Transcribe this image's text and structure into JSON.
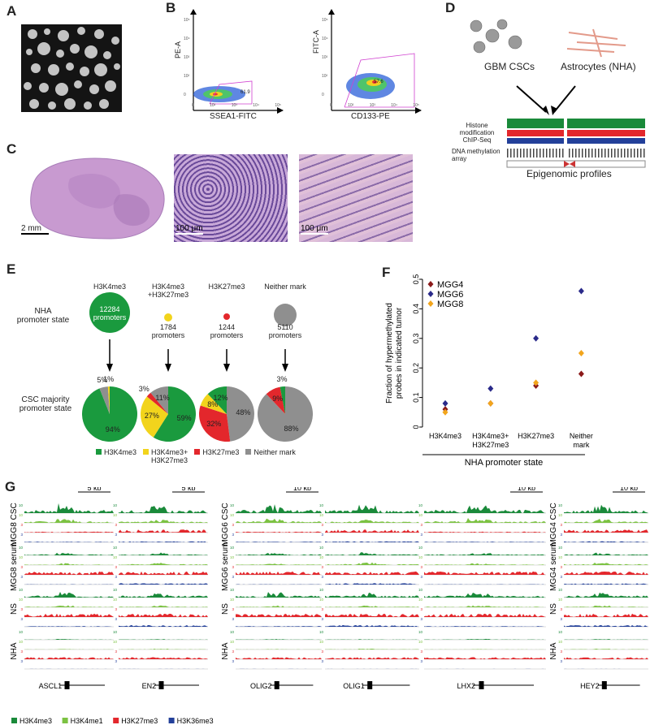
{
  "panel_letters": {
    "a": "A",
    "b": "B",
    "c": "C",
    "d": "D",
    "e": "E",
    "f": "F",
    "g": "G"
  },
  "panel_b": {
    "plot1": {
      "ylabel": "PE-A",
      "xlabel": "SSEA1-FITC",
      "gate_pct": "61.9"
    },
    "plot2": {
      "ylabel": "FITC-A",
      "xlabel": "CD133-PE",
      "gate_pct": "57.6"
    },
    "yticks": [
      "10⁵",
      "10⁴",
      "10³",
      "10²",
      "0"
    ],
    "xticks": [
      "0",
      "10²",
      "10³",
      "10⁴",
      "10⁵"
    ]
  },
  "panel_c": {
    "scale1": "2 mm",
    "scale2": "100 μm",
    "scale3": "100 μm"
  },
  "panel_d": {
    "label_csc": "GBM CSCs",
    "label_nha": "Astrocytes (NHA)",
    "histone": "Histone modification\nChIP-Seq",
    "methyl": "DNA methylation\narray",
    "profiles": "Epigenomic profiles"
  },
  "panel_e": {
    "row1_label": "NHA\npromoter state",
    "row2_label": "CSC majority\npromoter state",
    "columns": [
      {
        "header": "H3K4me3",
        "count": "12284\npromoters",
        "color": "#1a9a3e"
      },
      {
        "header": "H3K4me3\n+H3K27me3",
        "count": "1784\npromoters",
        "color": "#f2d41c"
      },
      {
        "header": "H3K27me3",
        "count": "1244\npromoters",
        "color": "#e3272c"
      },
      {
        "header": "Neither mark",
        "count": "5110\npromoters",
        "color": "#8f8f8f"
      }
    ],
    "pies": [
      {
        "slices": [
          {
            "pct": 94,
            "color": "#1a9a3e",
            "label": "94%"
          },
          {
            "pct": 5,
            "color": "#8f8f8f",
            "label": "5%"
          },
          {
            "pct": 1,
            "color": "#f2d41c",
            "label": "1%"
          }
        ]
      },
      {
        "slices": [
          {
            "pct": 59,
            "color": "#1a9a3e",
            "label": "59%"
          },
          {
            "pct": 27,
            "color": "#f2d41c",
            "label": "27%"
          },
          {
            "pct": 3,
            "color": "#e3272c",
            "label": "3%"
          },
          {
            "pct": 11,
            "color": "#8f8f8f",
            "label": "11%"
          }
        ]
      },
      {
        "slices": [
          {
            "pct": 48,
            "color": "#8f8f8f",
            "label": "48%"
          },
          {
            "pct": 32,
            "color": "#e3272c",
            "label": "32%"
          },
          {
            "pct": 8,
            "color": "#f2d41c",
            "label": "8%"
          },
          {
            "pct": 12,
            "color": "#1a9a3e",
            "label": "12%"
          }
        ]
      },
      {
        "slices": [
          {
            "pct": 88,
            "color": "#8f8f8f",
            "label": "88%"
          },
          {
            "pct": 9,
            "color": "#e3272c",
            "label": "9%"
          },
          {
            "pct": 3,
            "color": "#1a9a3e",
            "label": "3%"
          }
        ]
      }
    ],
    "legend": [
      {
        "label": "H3K4me3",
        "color": "#1a9a3e"
      },
      {
        "label": "H3K4me3+\nH3K27me3",
        "color": "#f2d41c"
      },
      {
        "label": "H3K27me3",
        "color": "#e3272c"
      },
      {
        "label": "Neither mark",
        "color": "#8f8f8f"
      }
    ]
  },
  "chart_data": {
    "type": "scatter",
    "ylabel": "Fraction of hypermethylated\nprobes in indicated tumor",
    "xlabel": "NHA promoter state",
    "categories": [
      "H3K4me3",
      "H3K4me3+\nH3K27me3",
      "H3K27me3",
      "Neither\nmark"
    ],
    "ylim": [
      0,
      0.5
    ],
    "yticks": [
      "0",
      "0.1",
      "0.2",
      "0.3",
      "0.4",
      "0.5"
    ],
    "legend_position": "top-left",
    "series": [
      {
        "name": "MGG4",
        "color": "#8b1a1a",
        "values": [
          0.06,
          0.08,
          0.14,
          0.18
        ]
      },
      {
        "name": "MGG6",
        "color": "#2a2a8a",
        "values": [
          0.08,
          0.13,
          0.3,
          0.46
        ]
      },
      {
        "name": "MGG8",
        "color": "#f2a51c",
        "values": [
          0.05,
          0.08,
          0.15,
          0.25
        ]
      }
    ]
  },
  "panel_g": {
    "groups": [
      {
        "row_labels": [
          "MGG8 CSC",
          "MGG8 serum",
          "NS",
          "NHA"
        ],
        "genes": [
          {
            "name": "ASCL1",
            "scale": "5 kb"
          },
          {
            "name": "EN2",
            "scale": "5 kb"
          }
        ]
      },
      {
        "row_labels": [
          "MGG6 CSC",
          "MGG6 serum",
          "NS",
          "NHA"
        ],
        "genes": [
          {
            "name": "OLIG2",
            "scale": "10 kb"
          },
          {
            "name": "OLIG1",
            "scale": ""
          },
          {
            "name": "LHX2",
            "scale": "10 kb"
          }
        ]
      },
      {
        "row_labels": [
          "MGG4 CSC",
          "MGG4 serum",
          "NS",
          "NHA"
        ],
        "genes": [
          {
            "name": "HEY2",
            "scale": "10 kb"
          }
        ]
      }
    ],
    "track_ticks": [
      "10",
      "10",
      "3",
      "3"
    ],
    "legend": [
      {
        "label": "H3K4me3",
        "color": "#1a8a3a"
      },
      {
        "label": "H3K4me1",
        "color": "#7cc242"
      },
      {
        "label": "H3K27me3",
        "color": "#e3272c"
      },
      {
        "label": "H3K36me3",
        "color": "#23409a"
      }
    ]
  }
}
